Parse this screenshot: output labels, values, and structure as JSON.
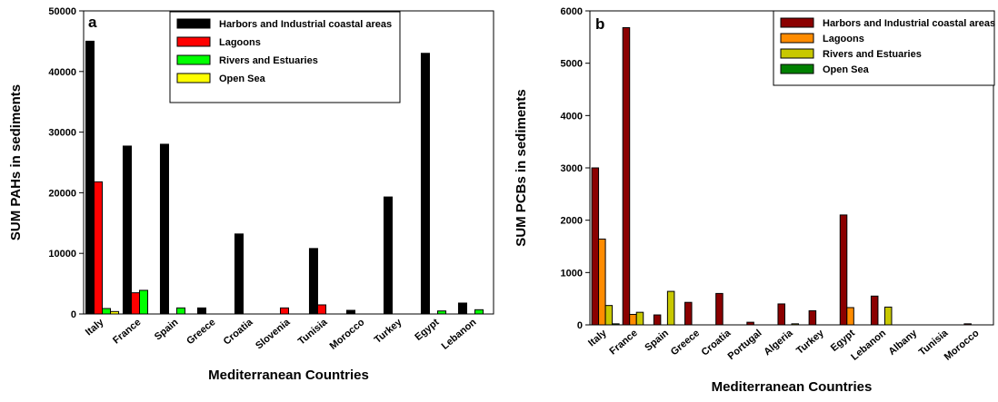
{
  "chart_data": [
    {
      "type": "bar",
      "panel_label": "a",
      "xlabel": "Mediterranean Countries",
      "ylabel": "SUM PAHs in sediments",
      "ylim": [
        0,
        50000
      ],
      "yticks": [
        0,
        10000,
        20000,
        30000,
        40000,
        50000
      ],
      "grid": false,
      "legend_position": "top-right",
      "categories": [
        "Italy",
        "France",
        "Spain",
        "Greece",
        "Croatia",
        "Slovenia",
        "Tunisia",
        "Morocco",
        "Turkey",
        "Egypt",
        "Lebanon"
      ],
      "series": [
        {
          "name": "Harbors and Industrial coastal areas",
          "color": "#000000",
          "values": [
            45000,
            27700,
            28000,
            1000,
            13200,
            0,
            10800,
            600,
            19300,
            43000,
            1800
          ]
        },
        {
          "name": "Lagoons",
          "color": "#ff0000",
          "values": [
            21800,
            3500,
            0,
            0,
            0,
            1000,
            1500,
            0,
            0,
            0,
            0
          ]
        },
        {
          "name": "Rivers and Estuaries",
          "color": "#00ff00",
          "values": [
            900,
            3900,
            1000,
            0,
            0,
            0,
            0,
            0,
            0,
            500,
            700
          ]
        },
        {
          "name": "Open Sea",
          "color": "#ffff00",
          "values": [
            400,
            0,
            0,
            0,
            0,
            0,
            0,
            0,
            0,
            0,
            0
          ]
        }
      ]
    },
    {
      "type": "bar",
      "panel_label": "b",
      "xlabel": "Mediterranean Countries",
      "ylabel": "SUM PCBs in sediments",
      "ylim": [
        0,
        6000
      ],
      "yticks": [
        0,
        1000,
        2000,
        3000,
        4000,
        5000,
        6000
      ],
      "grid": false,
      "legend_position": "top-right",
      "categories": [
        "Italy",
        "France",
        "Spain",
        "Greece",
        "Croatia",
        "Portugal",
        "Algeria",
        "Turkey",
        "Egypt",
        "Lebanon",
        "Albany",
        "Tunisia",
        "Morocco"
      ],
      "series": [
        {
          "name": "Harbors and Industrial coastal areas",
          "color": "#8b0000",
          "values": [
            3000,
            5680,
            190,
            430,
            600,
            50,
            400,
            270,
            2100,
            550,
            0,
            0,
            20
          ]
        },
        {
          "name": "Lagoons",
          "color": "#ff8c00",
          "values": [
            1640,
            200,
            0,
            0,
            0,
            0,
            0,
            0,
            330,
            0,
            0,
            0,
            0
          ]
        },
        {
          "name": "Rivers and Estuaries",
          "color": "#c8c800",
          "values": [
            370,
            240,
            640,
            0,
            0,
            0,
            20,
            0,
            0,
            340,
            0,
            0,
            0
          ]
        },
        {
          "name": "Open Sea",
          "color": "#008000",
          "values": [
            20,
            0,
            0,
            0,
            0,
            0,
            0,
            0,
            0,
            0,
            0,
            0,
            0
          ]
        }
      ]
    }
  ]
}
